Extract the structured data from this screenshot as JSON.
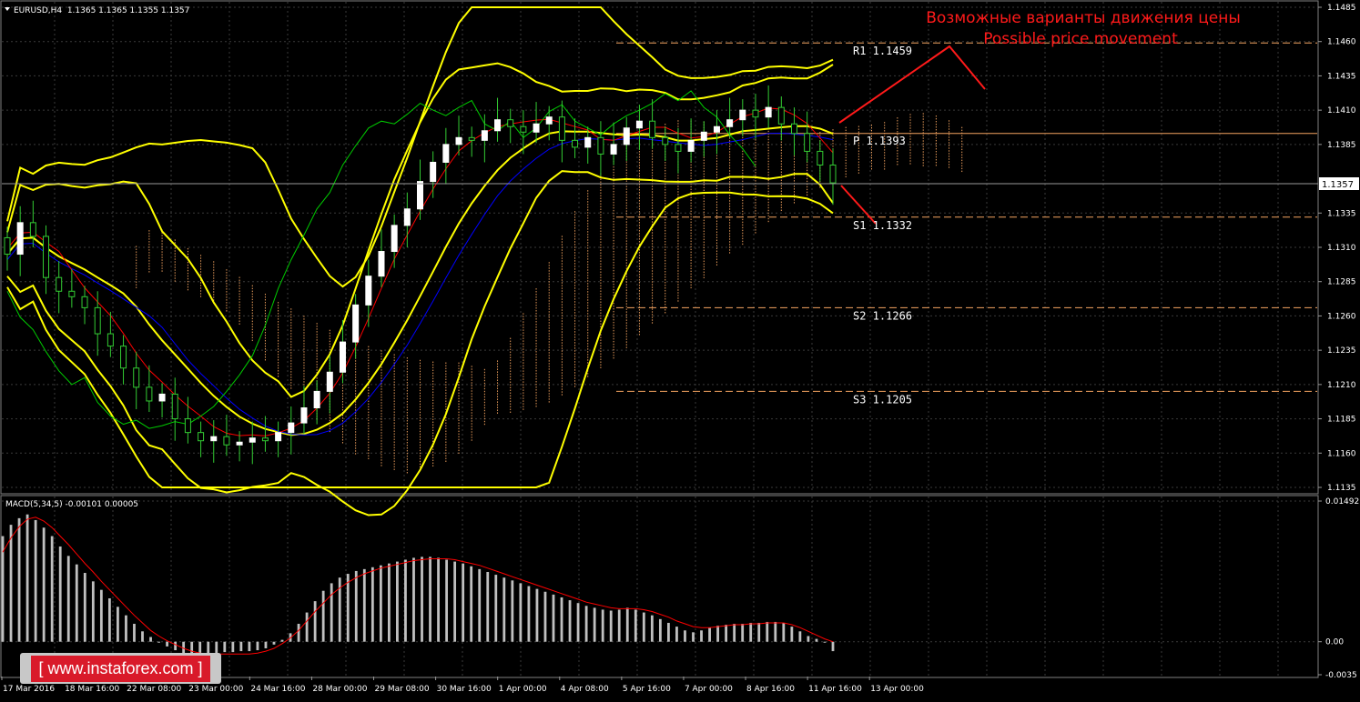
{
  "header": {
    "symbol_info": "EURUSD,H4  1.1365 1.1365 1.1355 1.1357",
    "macd_info": "MACD(5,34,5) -0.00101 0.00005"
  },
  "forecast": {
    "title_ru": "Возможные варианты движения цены",
    "title_en": "Possible price movement"
  },
  "watermark": "[ www.instaforex.com ]",
  "colors": {
    "background": "#000000",
    "grid": "#3a3a3a",
    "bull_candle": "#ffffff",
    "candle_wick": "#33cc33",
    "bollinger": "#ffff00",
    "tenkan": "#ff0000",
    "kijun": "#0000ff",
    "chikou": "#00cc00",
    "kumo_cloud": "#f4a460",
    "pivot_line": "#f4a460",
    "forecast": "#ff1a1a",
    "macd_histogram": "#c0c0c0",
    "macd_signal": "#ff0000"
  },
  "chart_data": [
    {
      "type": "candlestick",
      "symbol": "EURUSD",
      "timeframe": "H4",
      "title": "EURUSD,H4",
      "current_price": "1.1357",
      "ohlc_shown": {
        "open": 1.1365,
        "high": 1.1365,
        "low": 1.1355,
        "close": 1.1357
      },
      "ylim": [
        1.1135,
        1.1485
      ],
      "y_ticks": [
        "1.1485",
        "1.1460",
        "1.1435",
        "1.1410",
        "1.1385",
        "1.1335",
        "1.1310",
        "1.1285",
        "1.1260",
        "1.1235",
        "1.1210",
        "1.1185",
        "1.1160",
        "1.1135"
      ],
      "x_ticks": [
        "17 Mar 2016",
        "18 Mar 16:00",
        "22 Mar 08:00",
        "23 Mar 00:00",
        "24 Mar 16:00",
        "28 Mar 00:00",
        "29 Mar 08:00",
        "30 Mar 16:00",
        "1 Apr 00:00",
        "4 Apr 08:00",
        "5 Apr 16:00",
        "7 Apr 00:00",
        "8 Apr 16:00",
        "11 Apr 16:00",
        "13 Apr 00:00"
      ],
      "pivot_levels": [
        {
          "label": "R1",
          "value": "1.1459"
        },
        {
          "label": "P",
          "value": "1.1393"
        },
        {
          "label": "S1",
          "value": "1.1332"
        },
        {
          "label": "S2",
          "value": "1.1266"
        },
        {
          "label": "S3",
          "value": "1.1205"
        }
      ],
      "closes": [
        1.1305,
        1.1328,
        1.1318,
        1.1288,
        1.1278,
        1.1274,
        1.1266,
        1.1247,
        1.1238,
        1.1222,
        1.1208,
        1.1198,
        1.1203,
        1.1185,
        1.1175,
        1.1169,
        1.1172,
        1.1166,
        1.1168,
        1.1171,
        1.1169,
        1.1175,
        1.1182,
        1.1193,
        1.1205,
        1.1219,
        1.1241,
        1.1268,
        1.1289,
        1.1307,
        1.1326,
        1.1338,
        1.1358,
        1.1372,
        1.1385,
        1.139,
        1.1388,
        1.1395,
        1.1403,
        1.1398,
        1.1394,
        1.14,
        1.1405,
        1.1388,
        1.1383,
        1.139,
        1.1378,
        1.1385,
        1.1397,
        1.1402,
        1.139,
        1.1385,
        1.138,
        1.1388,
        1.1394,
        1.1398,
        1.1403,
        1.141,
        1.1405,
        1.1412,
        1.14,
        1.1393,
        1.138,
        1.137,
        1.1357
      ],
      "overlays": [
        "Bollinger Bands",
        "Ichimoku Kinko Hyo",
        "Pivot Points"
      ]
    },
    {
      "type": "bar",
      "title": "MACD(5,34,5)",
      "macd_value": -0.00101,
      "signal_value": 5e-05,
      "ylim": [
        -0.0035,
        0.01492
      ],
      "y_ticks": [
        "0.01492",
        "0.00",
        "-0.0035"
      ],
      "series": [
        {
          "name": "MACD",
          "values": [
            0.0112,
            0.0124,
            0.0131,
            0.0135,
            0.0129,
            0.0121,
            0.0112,
            0.0101,
            0.0091,
            0.0082,
            0.0073,
            0.0064,
            0.0055,
            0.0046,
            0.0037,
            0.0028,
            0.0019,
            0.0011,
            0.0005,
            0.0,
            -0.0005,
            -0.0009,
            -0.0012,
            -0.0013,
            -0.0013,
            -0.0012,
            -0.0012,
            -0.0011,
            -0.0011,
            -0.001,
            -0.001,
            -0.0009,
            -0.0007,
            -0.0003,
            0.0002,
            0.0009,
            0.0019,
            0.0031,
            0.0043,
            0.0054,
            0.0062,
            0.0068,
            0.0072,
            0.0075,
            0.0077,
            0.0079,
            0.0081,
            0.0083,
            0.0085,
            0.0087,
            0.0089,
            0.009,
            0.009,
            0.0089,
            0.0087,
            0.0085,
            0.0083,
            0.008,
            0.0077,
            0.0074,
            0.0071,
            0.0068,
            0.0065,
            0.0062,
            0.0059,
            0.0056,
            0.0053,
            0.005,
            0.0047,
            0.0044,
            0.0041,
            0.0038,
            0.0036,
            0.0034,
            0.0033,
            0.0034,
            0.0036,
            0.0034,
            0.0031,
            0.0028,
            0.0024,
            0.002,
            0.0016,
            0.0012,
            0.001,
            0.0012,
            0.0015,
            0.0017,
            0.0018,
            0.0019,
            0.0019,
            0.002,
            0.002,
            0.0021,
            0.0021,
            0.002,
            0.0016,
            0.0011,
            0.0006,
            0.0003,
            -0.0001,
            -0.001
          ]
        },
        {
          "name": "Signal",
          "values": [
            0.0095,
            0.011,
            0.0122,
            0.013,
            0.0132,
            0.0128,
            0.0121,
            0.0112,
            0.0103,
            0.0093,
            0.0083,
            0.0074,
            0.0064,
            0.0055,
            0.0046,
            0.0037,
            0.0028,
            0.002,
            0.0012,
            0.0006,
            0.0001,
            -0.0003,
            -0.0007,
            -0.001,
            -0.0012,
            -0.0013,
            -0.0013,
            -0.0013,
            -0.0013,
            -0.0013,
            -0.0013,
            -0.0012,
            -0.001,
            -0.0007,
            -0.0002,
            0.0004,
            0.0012,
            0.0022,
            0.0032,
            0.0041,
            0.005,
            0.0057,
            0.0063,
            0.0068,
            0.0072,
            0.0075,
            0.0078,
            0.008,
            0.0082,
            0.0084,
            0.0086,
            0.0087,
            0.0088,
            0.0088,
            0.0088,
            0.0087,
            0.0085,
            0.0083,
            0.0081,
            0.0078,
            0.0075,
            0.0072,
            0.0069,
            0.0066,
            0.0063,
            0.006,
            0.0057,
            0.0054,
            0.0051,
            0.0048,
            0.0045,
            0.0042,
            0.004,
            0.0038,
            0.0036,
            0.0035,
            0.0035,
            0.0035,
            0.0034,
            0.0032,
            0.0029,
            0.0026,
            0.0022,
            0.0019,
            0.0016,
            0.0015,
            0.0015,
            0.0016,
            0.0017,
            0.0018,
            0.0018,
            0.0019,
            0.0019,
            0.002,
            0.002,
            0.002,
            0.0018,
            0.0015,
            0.0011,
            0.0007,
            0.0003,
            0.0
          ]
        }
      ]
    }
  ]
}
